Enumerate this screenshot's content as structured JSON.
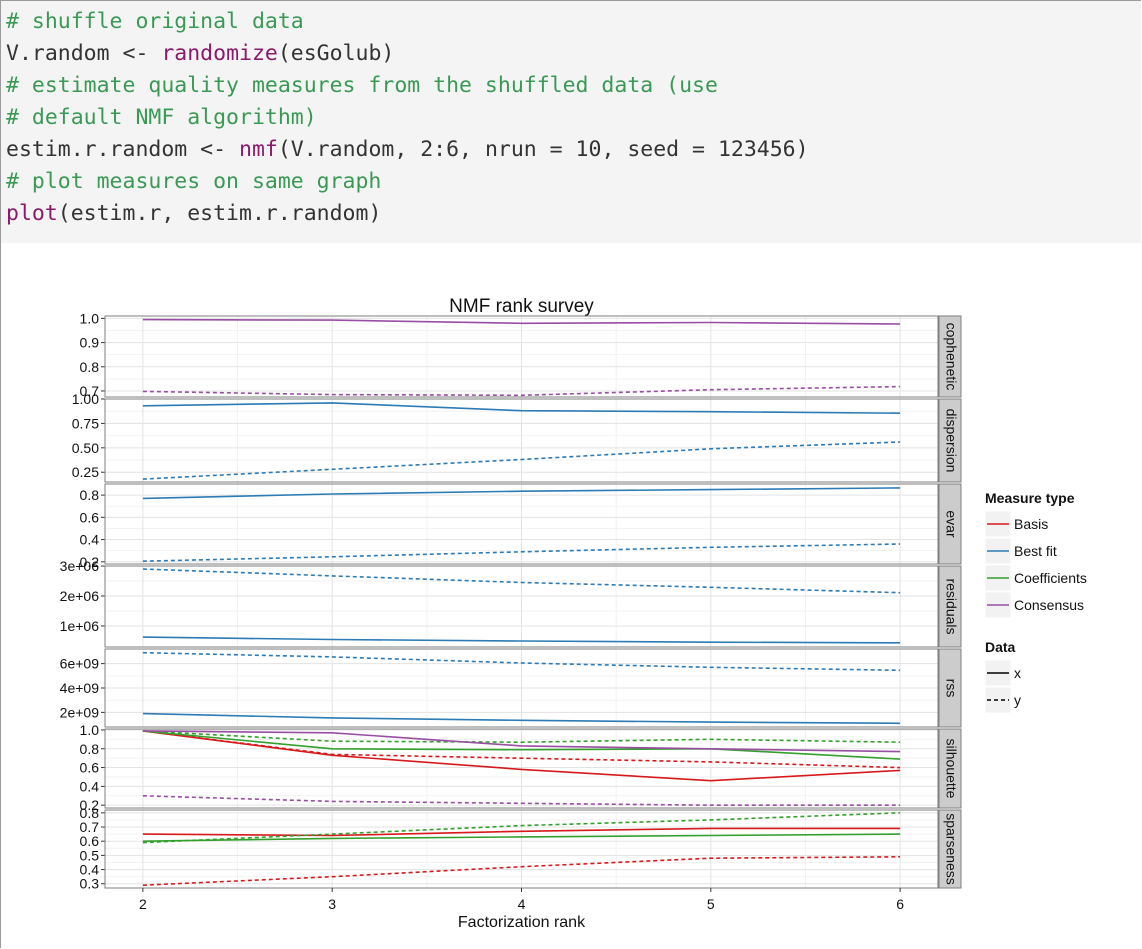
{
  "code": {
    "lines": [
      [
        {
          "t": "comment",
          "s": "# shuffle original data"
        }
      ],
      [
        {
          "t": "plain",
          "s": "V.random <- "
        },
        {
          "t": "fn",
          "s": "randomize"
        },
        {
          "t": "plain",
          "s": "(esGolub)"
        }
      ],
      [
        {
          "t": "comment",
          "s": "# estimate quality measures from the shuffled data (use"
        }
      ],
      [
        {
          "t": "comment",
          "s": "# default NMF algorithm)"
        }
      ],
      [
        {
          "t": "plain",
          "s": "estim.r.random <- "
        },
        {
          "t": "fn",
          "s": "nmf"
        },
        {
          "t": "plain",
          "s": "(V.random, 2:6, nrun = 10, seed = 123456)"
        }
      ],
      [
        {
          "t": "comment",
          "s": "# plot measures on same graph"
        }
      ],
      [
        {
          "t": "fn",
          "s": "plot"
        },
        {
          "t": "plain",
          "s": "(estim.r, estim.r.random)"
        }
      ]
    ]
  },
  "chart_data": {
    "type": "line",
    "title": "NMF rank survey",
    "xlabel": "Factorization rank",
    "x": [
      2,
      3,
      4,
      5,
      6
    ],
    "xlim": [
      1.8,
      6.2
    ],
    "grid": true,
    "colors": {
      "Basis": "#d7191c",
      "Best fit": "#2c7bb6",
      "Coefficients": "#33a02c",
      "Consensus": "#984ea3"
    },
    "legend": {
      "position": "right",
      "measure_title": "Measure type",
      "measure_entries": [
        "Basis",
        "Best fit",
        "Coefficients",
        "Consensus"
      ],
      "data_title": "Data",
      "data_entries": [
        "x",
        "y"
      ]
    },
    "panels": [
      {
        "strip": "cophenetic",
        "ylim": [
          0.675,
          1.01
        ],
        "ticks": [
          {
            "v": 0.7,
            "l": "0.7"
          },
          {
            "v": 0.8,
            "l": "0.8"
          },
          {
            "v": 0.9,
            "l": "0.9"
          },
          {
            "v": 1.0,
            "l": "1.0"
          }
        ],
        "series": [
          {
            "measure": "Consensus",
            "data": "x",
            "values": [
              0.995,
              0.993,
              0.98,
              0.983,
              0.977
            ]
          },
          {
            "measure": "Consensus",
            "data": "y",
            "values": [
              0.698,
              0.685,
              0.682,
              0.705,
              0.718
            ]
          }
        ]
      },
      {
        "strip": "dispersion",
        "ylim": [
          0.15,
          1.0
        ],
        "ticks": [
          {
            "v": 0.25,
            "l": "0.25"
          },
          {
            "v": 0.5,
            "l": "0.50"
          },
          {
            "v": 0.75,
            "l": "0.75"
          },
          {
            "v": 1.0,
            "l": "1.00"
          }
        ],
        "series": [
          {
            "measure": "Best fit",
            "data": "x",
            "values": [
              0.93,
              0.96,
              0.88,
              0.87,
              0.855
            ]
          },
          {
            "measure": "Best fit",
            "data": "y",
            "values": [
              0.18,
              0.28,
              0.38,
              0.49,
              0.56
            ]
          }
        ]
      },
      {
        "strip": "evar",
        "ylim": [
          0.18,
          0.9
        ],
        "ticks": [
          {
            "v": 0.2,
            "l": "0.2"
          },
          {
            "v": 0.4,
            "l": "0.4"
          },
          {
            "v": 0.6,
            "l": "0.6"
          },
          {
            "v": 0.8,
            "l": "0.8"
          }
        ],
        "series": [
          {
            "measure": "Best fit",
            "data": "x",
            "values": [
              0.77,
              0.81,
              0.835,
              0.85,
              0.865
            ]
          },
          {
            "measure": "Best fit",
            "data": "y",
            "values": [
              0.205,
              0.245,
              0.29,
              0.33,
              0.36
            ]
          }
        ]
      },
      {
        "strip": "residuals",
        "ylim": [
          300000,
          3000000
        ],
        "ticks": [
          {
            "v": 1000000,
            "l": "1e+06"
          },
          {
            "v": 2000000,
            "l": "2e+06"
          },
          {
            "v": 3000000,
            "l": "3e+06"
          }
        ],
        "series": [
          {
            "measure": "Best fit",
            "data": "x",
            "values": [
              630000,
              550000,
              500000,
              460000,
              440000
            ]
          },
          {
            "measure": "Best fit",
            "data": "y",
            "values": [
              2900000,
              2670000,
              2450000,
              2290000,
              2110000
            ]
          }
        ]
      },
      {
        "strip": "rss",
        "ylim": [
          800000000,
          7200000000
        ],
        "ticks": [
          {
            "v": 2000000000,
            "l": "2e+09"
          },
          {
            "v": 4000000000,
            "l": "4e+09"
          },
          {
            "v": 6000000000,
            "l": "6e+09"
          }
        ],
        "series": [
          {
            "measure": "Best fit",
            "data": "x",
            "values": [
              1900000000,
              1550000000,
              1350000000,
              1200000000,
              1100000000
            ]
          },
          {
            "measure": "Best fit",
            "data": "y",
            "values": [
              6900000000,
              6550000000,
              6050000000,
              5700000000,
              5450000000
            ]
          }
        ]
      },
      {
        "strip": "silhouette",
        "ylim": [
          0.17,
          1.01
        ],
        "ticks": [
          {
            "v": 0.2,
            "l": "0.2"
          },
          {
            "v": 0.4,
            "l": "0.4"
          },
          {
            "v": 0.6,
            "l": "0.6"
          },
          {
            "v": 0.8,
            "l": "0.8"
          },
          {
            "v": 1.0,
            "l": "1.0"
          }
        ],
        "series": [
          {
            "measure": "Basis",
            "data": "x",
            "values": [
              0.99,
              0.73,
              0.58,
              0.46,
              0.57
            ]
          },
          {
            "measure": "Basis",
            "data": "y",
            "values": [
              0.99,
              0.74,
              0.7,
              0.66,
              0.6
            ]
          },
          {
            "measure": "Coefficients",
            "data": "x",
            "values": [
              0.99,
              0.8,
              0.79,
              0.8,
              0.69
            ]
          },
          {
            "measure": "Coefficients",
            "data": "y",
            "values": [
              0.99,
              0.88,
              0.87,
              0.9,
              0.87
            ]
          },
          {
            "measure": "Consensus",
            "data": "x",
            "values": [
              0.99,
              0.97,
              0.83,
              0.8,
              0.77
            ]
          },
          {
            "measure": "Consensus",
            "data": "y",
            "values": [
              0.3,
              0.24,
              0.22,
              0.2,
              0.2
            ]
          }
        ]
      },
      {
        "strip": "sparseness",
        "ylim": [
          0.27,
          0.82
        ],
        "ticks": [
          {
            "v": 0.3,
            "l": "0.3"
          },
          {
            "v": 0.4,
            "l": "0.4"
          },
          {
            "v": 0.5,
            "l": "0.5"
          },
          {
            "v": 0.6,
            "l": "0.6"
          },
          {
            "v": 0.7,
            "l": "0.7"
          },
          {
            "v": 0.8,
            "l": "0.8"
          }
        ],
        "series": [
          {
            "measure": "Basis",
            "data": "x",
            "values": [
              0.65,
              0.64,
              0.67,
              0.69,
              0.69
            ]
          },
          {
            "measure": "Basis",
            "data": "y",
            "values": [
              0.29,
              0.35,
              0.42,
              0.48,
              0.49
            ]
          },
          {
            "measure": "Coefficients",
            "data": "x",
            "values": [
              0.6,
              0.62,
              0.63,
              0.64,
              0.65
            ]
          },
          {
            "measure": "Coefficients",
            "data": "y",
            "values": [
              0.59,
              0.65,
              0.71,
              0.75,
              0.8
            ]
          }
        ]
      }
    ]
  }
}
